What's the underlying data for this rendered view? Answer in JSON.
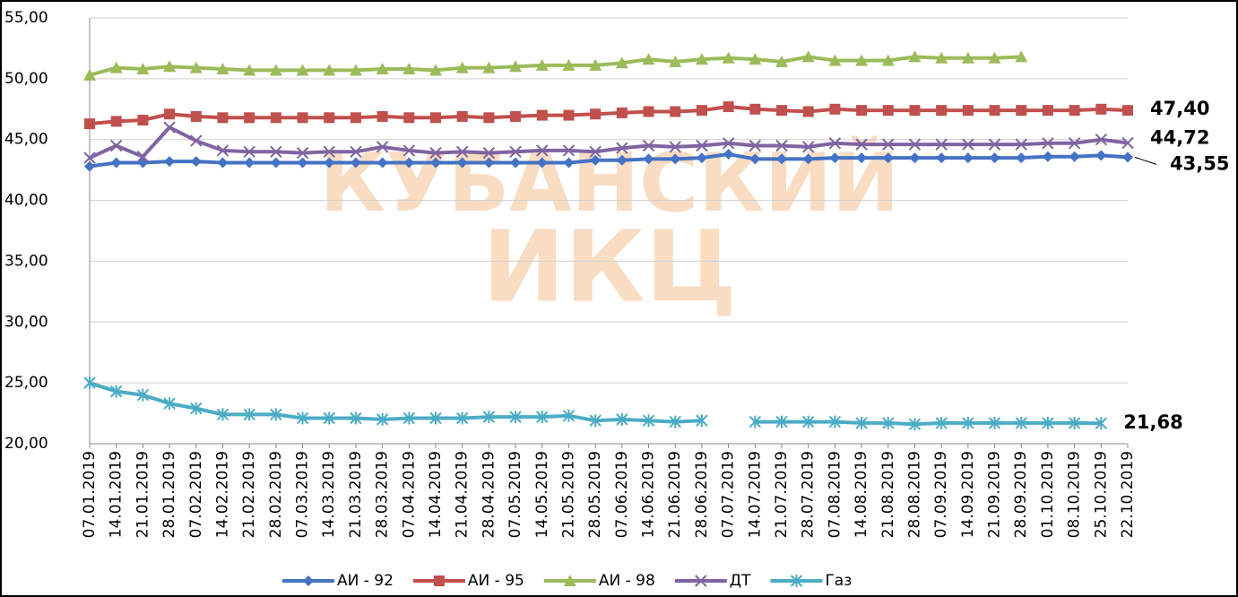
{
  "chart_data": {
    "type": "line",
    "watermark": [
      "КУБАНСКИЙ",
      "ИКЦ"
    ],
    "categories": [
      "07.01.2019",
      "14.01.2019",
      "21.01.2019",
      "28.01.2019",
      "07.02.2019",
      "14.02.2019",
      "21.02.2019",
      "28.02.2019",
      "07.03.2019",
      "14.03.2019",
      "21.03.2019",
      "28.03.2019",
      "07.04.2019",
      "14.04.2019",
      "21.04.2019",
      "28.04.2019",
      "07.05.2019",
      "14.05.2019",
      "21.05.2019",
      "28.05.2019",
      "07.06.2019",
      "14.06.2019",
      "21.06.2019",
      "28.06.2019",
      "07.07.2019",
      "14.07.2019",
      "21.07.2019",
      "28.07.2019",
      "07.08.2019",
      "14.08.2019",
      "21.08.2019",
      "28.08.2019",
      "07.09.2019",
      "14.09.2019",
      "21.09.2019",
      "28.09.2019",
      "01.10.2019",
      "08.10.2019",
      "25.10.2019",
      "22.10.2019"
    ],
    "ylim": [
      20,
      55
    ],
    "yticks": [
      {
        "value": 20,
        "label": "20,00"
      },
      {
        "value": 25,
        "label": "25,00"
      },
      {
        "value": 30,
        "label": "30,00"
      },
      {
        "value": 35,
        "label": "35,00"
      },
      {
        "value": 40,
        "label": "40,00"
      },
      {
        "value": 45,
        "label": "45,00"
      },
      {
        "value": 50,
        "label": "50,00"
      },
      {
        "value": 55,
        "label": "55,00"
      }
    ],
    "grid": true,
    "series": [
      {
        "name": "АИ - 92",
        "color": "#4472c4",
        "marker": "diamond",
        "values": [
          42.8,
          43.1,
          43.1,
          43.2,
          43.2,
          43.1,
          43.1,
          43.1,
          43.1,
          43.1,
          43.1,
          43.1,
          43.1,
          43.1,
          43.1,
          43.1,
          43.1,
          43.1,
          43.1,
          43.3,
          43.3,
          43.4,
          43.4,
          43.5,
          43.8,
          43.4,
          43.4,
          43.4,
          43.5,
          43.5,
          43.5,
          43.5,
          43.5,
          43.5,
          43.5,
          43.5,
          43.6,
          43.6,
          43.7,
          43.55
        ],
        "value_labels": [
          null,
          null,
          null,
          null,
          null,
          null,
          null,
          null,
          null,
          null,
          null,
          null,
          null,
          null,
          null,
          null,
          null,
          null,
          null,
          null,
          null,
          null,
          null,
          null,
          null,
          null,
          null,
          null,
          null,
          null,
          null,
          null,
          null,
          null,
          null,
          null,
          null,
          null,
          null,
          "43,55"
        ]
      },
      {
        "name": "АИ - 95",
        "color": "#c0504d",
        "marker": "square",
        "values": [
          46.3,
          46.5,
          46.6,
          47.1,
          46.9,
          46.8,
          46.8,
          46.8,
          46.8,
          46.8,
          46.8,
          46.9,
          46.8,
          46.8,
          46.9,
          46.8,
          46.9,
          47.0,
          47.0,
          47.1,
          47.2,
          47.3,
          47.3,
          47.4,
          47.7,
          47.5,
          47.4,
          47.3,
          47.5,
          47.4,
          47.4,
          47.4,
          47.4,
          47.4,
          47.4,
          47.4,
          47.4,
          47.4,
          47.5,
          47.4
        ],
        "value_labels": [
          null,
          null,
          null,
          null,
          null,
          null,
          null,
          null,
          null,
          null,
          null,
          null,
          null,
          null,
          null,
          null,
          null,
          null,
          null,
          null,
          null,
          null,
          null,
          null,
          null,
          null,
          null,
          null,
          null,
          null,
          null,
          null,
          null,
          null,
          null,
          null,
          null,
          null,
          null,
          "47,40"
        ]
      },
      {
        "name": "АИ - 98",
        "color": "#9bbb59",
        "marker": "triangle",
        "values": [
          50.3,
          50.9,
          50.8,
          51.0,
          50.9,
          50.8,
          50.7,
          50.7,
          50.7,
          50.7,
          50.7,
          50.8,
          50.8,
          50.7,
          50.9,
          50.9,
          51.0,
          51.1,
          51.1,
          51.1,
          51.3,
          51.6,
          51.4,
          51.6,
          51.7,
          51.6,
          51.4,
          51.8,
          51.5,
          51.5,
          51.5,
          51.8,
          51.7,
          51.7,
          51.7,
          51.8,
          null,
          null,
          null,
          null
        ]
      },
      {
        "name": "ДТ",
        "color": "#8064a2",
        "marker": "x",
        "values": [
          43.5,
          44.5,
          43.6,
          46.0,
          44.9,
          44.1,
          44.0,
          44.0,
          43.9,
          44.0,
          44.0,
          44.4,
          44.1,
          43.9,
          44.0,
          43.9,
          44.0,
          44.1,
          44.1,
          44.0,
          44.3,
          44.5,
          44.4,
          44.5,
          44.7,
          44.5,
          44.5,
          44.4,
          44.7,
          44.6,
          44.6,
          44.6,
          44.6,
          44.6,
          44.6,
          44.6,
          44.7,
          44.7,
          45.0,
          44.72
        ],
        "value_labels": [
          null,
          null,
          null,
          null,
          null,
          null,
          null,
          null,
          null,
          null,
          null,
          null,
          null,
          null,
          null,
          null,
          null,
          null,
          null,
          null,
          null,
          null,
          null,
          null,
          null,
          null,
          null,
          null,
          null,
          null,
          null,
          null,
          null,
          null,
          null,
          null,
          null,
          null,
          null,
          "44,72"
        ]
      },
      {
        "name": "Газ",
        "color": "#4bacc6",
        "marker": "star",
        "values": [
          25.0,
          24.3,
          24.0,
          23.3,
          22.9,
          22.4,
          22.4,
          22.4,
          22.1,
          22.1,
          22.1,
          22.0,
          22.1,
          22.1,
          22.1,
          22.2,
          22.2,
          22.2,
          22.3,
          21.9,
          22.0,
          21.9,
          21.8,
          21.9,
          null,
          21.8,
          21.8,
          21.8,
          21.8,
          21.7,
          21.7,
          21.6,
          21.7,
          21.7,
          21.7,
          21.7,
          21.7,
          21.7,
          21.68,
          null
        ],
        "value_labels": [
          null,
          null,
          null,
          null,
          null,
          null,
          null,
          null,
          null,
          null,
          null,
          null,
          null,
          null,
          null,
          null,
          null,
          null,
          null,
          null,
          null,
          null,
          null,
          null,
          null,
          null,
          null,
          null,
          null,
          null,
          null,
          null,
          null,
          null,
          null,
          null,
          null,
          null,
          "21,68",
          null
        ]
      }
    ]
  }
}
